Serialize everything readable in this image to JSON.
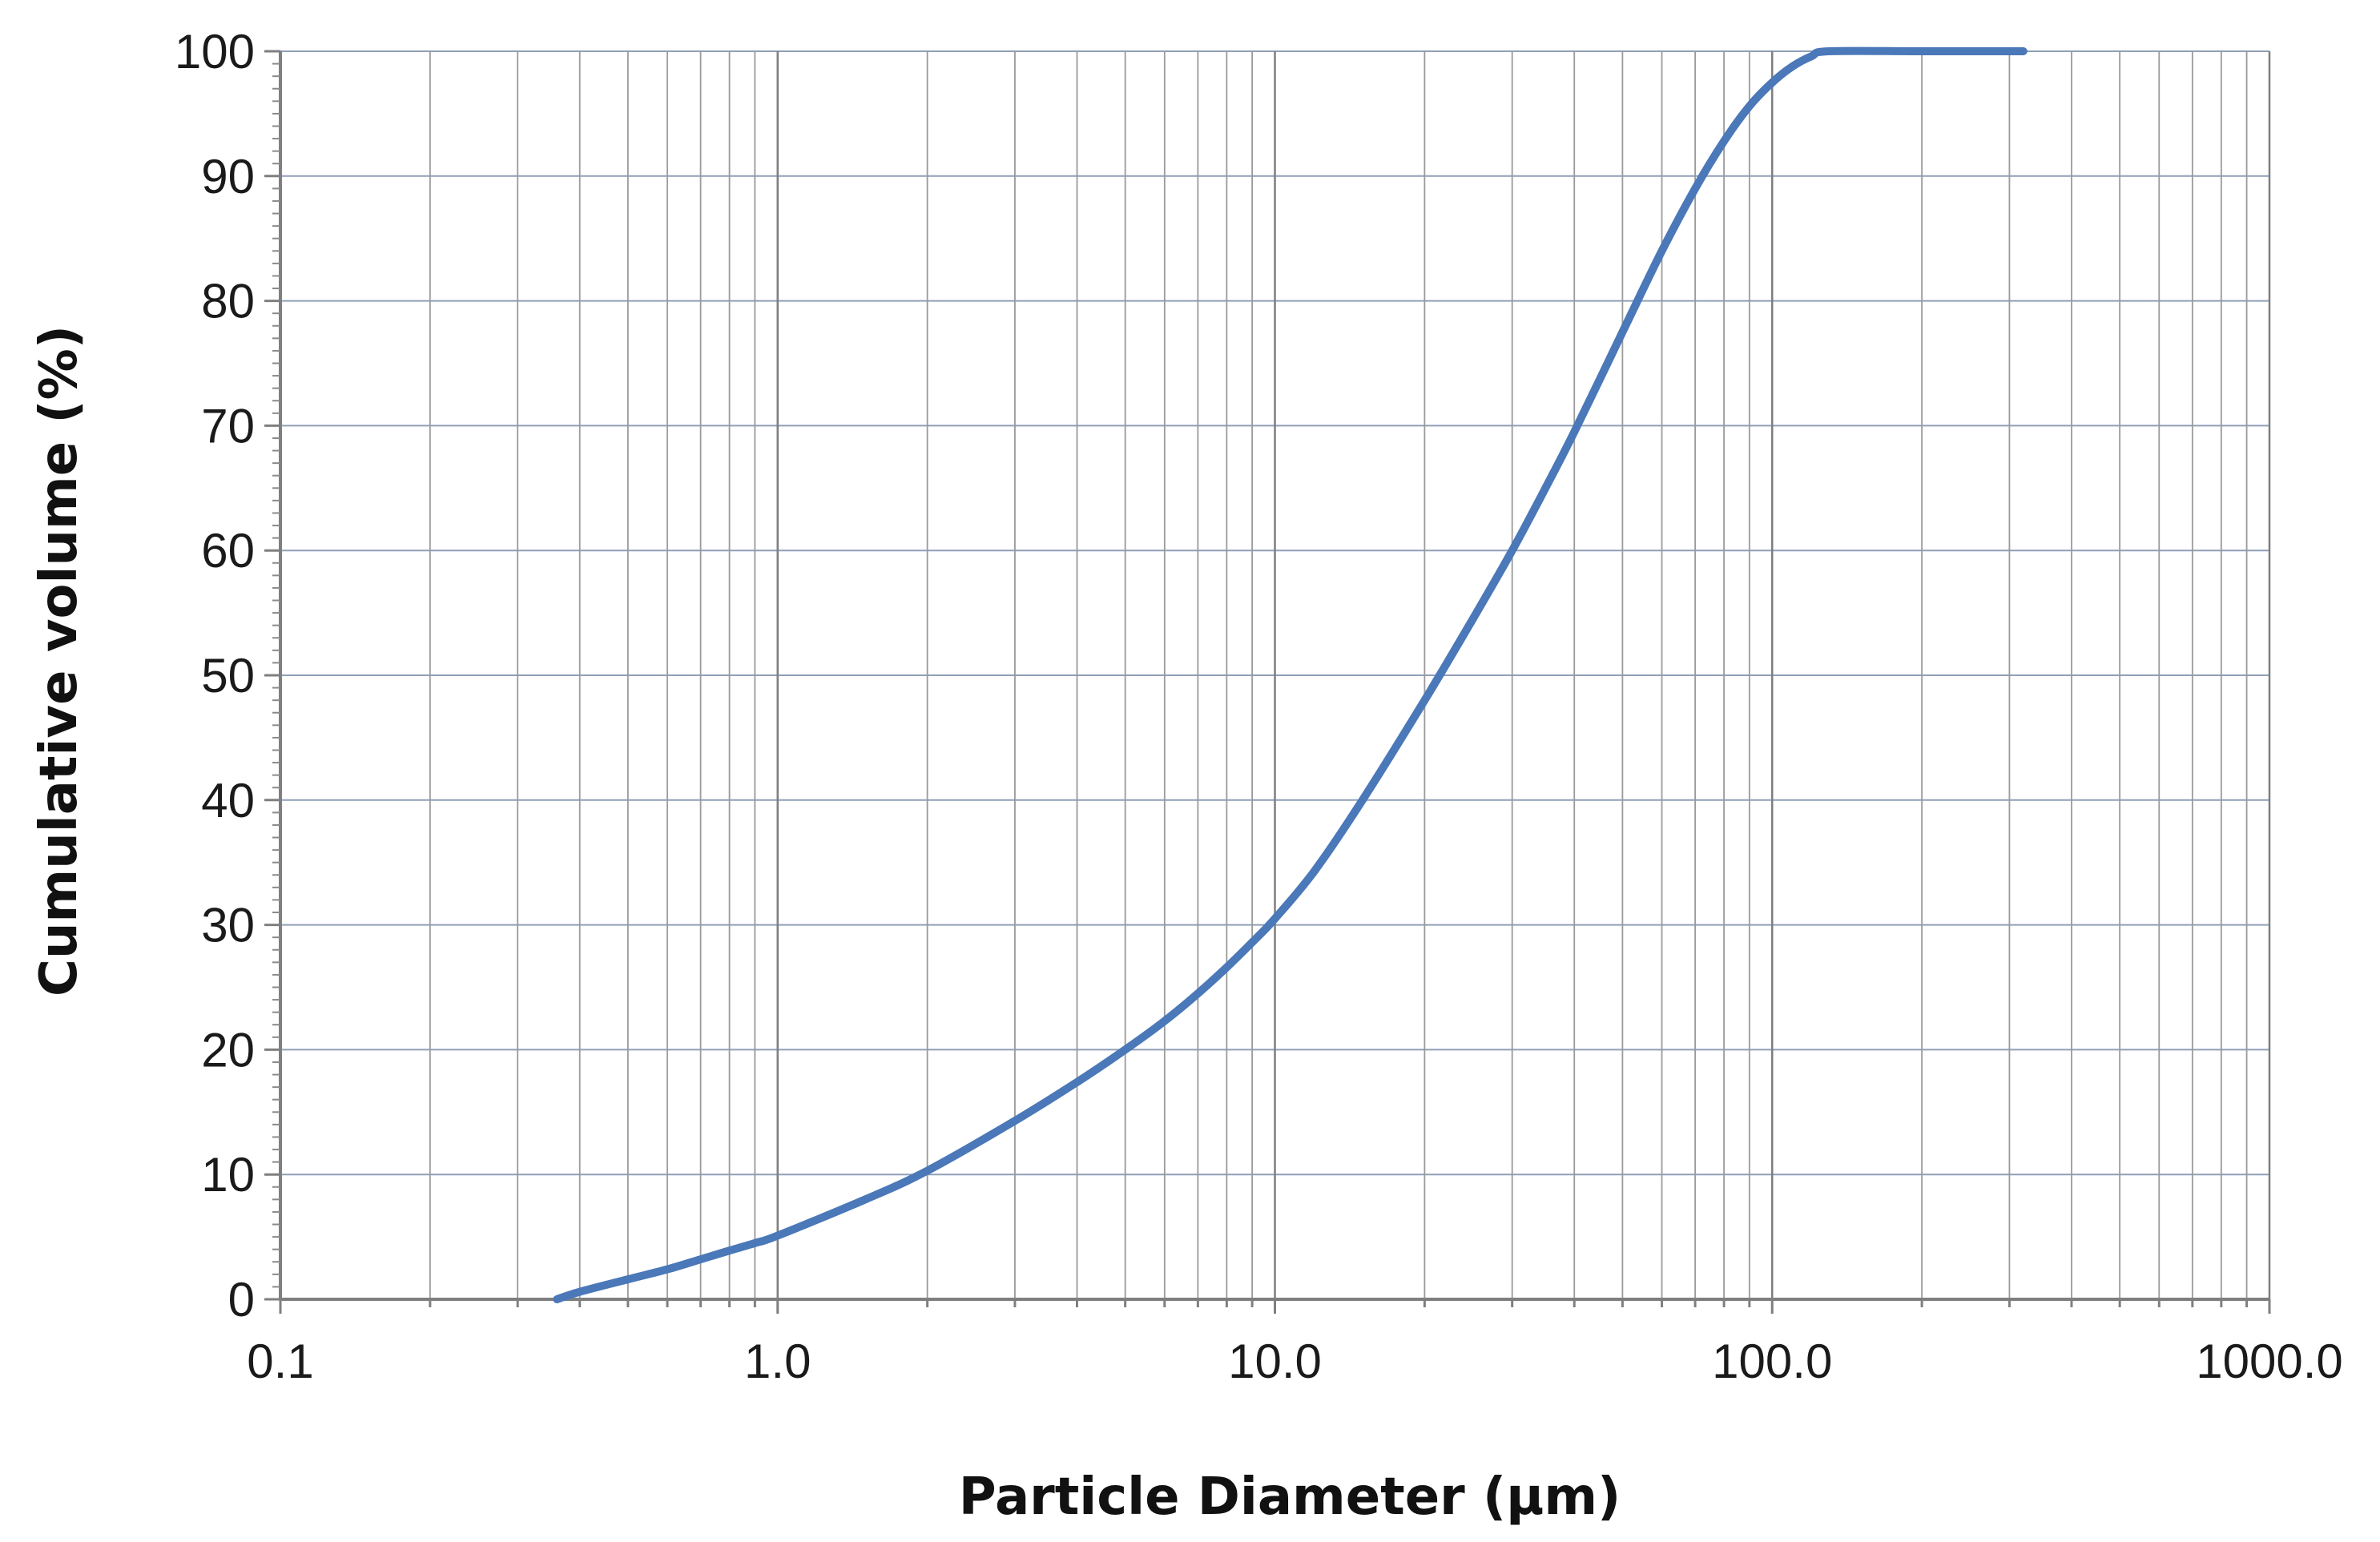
{
  "chart_data": {
    "type": "line",
    "title": "",
    "xlabel": "Particle Diameter (µm)",
    "ylabel": "Cumulative volume (%)",
    "x_scale": "log",
    "xlim": [
      0.1,
      1000
    ],
    "ylim": [
      0,
      100
    ],
    "grid": {
      "x_major": true,
      "x_minor": true,
      "y_major": true
    },
    "legend": "none",
    "x_ticks": [
      {
        "value": 0.1,
        "label": "0.1"
      },
      {
        "value": 1,
        "label": "1.0"
      },
      {
        "value": 10,
        "label": "10.0"
      },
      {
        "value": 100,
        "label": "100.0"
      },
      {
        "value": 1000,
        "label": "1000.0"
      }
    ],
    "y_ticks": [
      {
        "value": 0,
        "label": "0"
      },
      {
        "value": 10,
        "label": "10"
      },
      {
        "value": 20,
        "label": "20"
      },
      {
        "value": 30,
        "label": "30"
      },
      {
        "value": 40,
        "label": "40"
      },
      {
        "value": 50,
        "label": "50"
      },
      {
        "value": 60,
        "label": "60"
      },
      {
        "value": 70,
        "label": "70"
      },
      {
        "value": 80,
        "label": "80"
      },
      {
        "value": 90,
        "label": "90"
      },
      {
        "value": 100,
        "label": "100"
      }
    ],
    "series": [
      {
        "color": "#4a78b8",
        "points": [
          [
            0.36,
            0
          ],
          [
            0.4,
            0.6
          ],
          [
            0.5,
            1.6
          ],
          [
            0.6,
            2.4
          ],
          [
            0.7,
            3.2
          ],
          [
            0.8,
            3.9
          ],
          [
            0.9,
            4.5
          ],
          [
            1.0,
            5.1
          ],
          [
            1.5,
            8.0
          ],
          [
            2.0,
            10.3
          ],
          [
            3.0,
            14.3
          ],
          [
            4.0,
            17.4
          ],
          [
            5.0,
            20.0
          ],
          [
            6.0,
            22.3
          ],
          [
            7.0,
            24.5
          ],
          [
            8.0,
            26.6
          ],
          [
            9.0,
            28.6
          ],
          [
            10.0,
            30.5
          ],
          [
            12.0,
            34.3
          ],
          [
            15.0,
            40.0
          ],
          [
            20.0,
            48.0
          ],
          [
            25.0,
            54.5
          ],
          [
            30.0,
            60.0
          ],
          [
            35.0,
            65.0
          ],
          [
            40.0,
            69.5
          ],
          [
            50.0,
            77.5
          ],
          [
            60.0,
            84.0
          ],
          [
            70.0,
            89.0
          ],
          [
            80.0,
            92.8
          ],
          [
            90.0,
            95.6
          ],
          [
            100.0,
            97.5
          ],
          [
            110.0,
            98.8
          ],
          [
            120.0,
            99.6
          ],
          [
            130.0,
            100.0
          ],
          [
            200.0,
            100.0
          ],
          [
            320.0,
            100.0
          ]
        ]
      }
    ]
  }
}
